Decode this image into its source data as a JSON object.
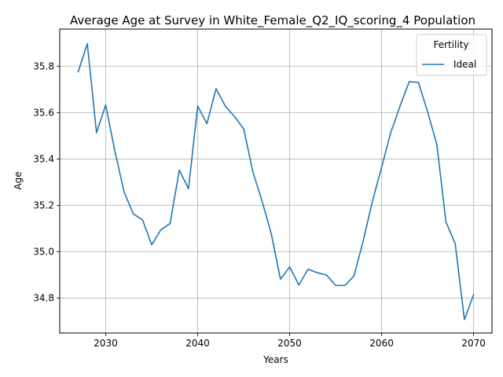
{
  "chart_data": {
    "type": "line",
    "title": "Average Age at Survey in White_Female_Q2_IQ_scoring_4 Population",
    "xlabel": "Years",
    "ylabel": "Age",
    "xlim": [
      2025,
      2072
    ],
    "ylim": [
      34.65,
      35.96
    ],
    "x_ticks": [
      2030,
      2040,
      2050,
      2060,
      2070
    ],
    "y_ticks": [
      34.8,
      35.0,
      35.2,
      35.4,
      35.6,
      35.8
    ],
    "x_tick_labels": [
      "2030",
      "2040",
      "2050",
      "2060",
      "2070"
    ],
    "y_tick_labels": [
      "34.8",
      "35.0",
      "35.2",
      "35.4",
      "35.6",
      "35.8"
    ],
    "grid": true,
    "legend": {
      "title": "Fertility",
      "placement": "top-right"
    },
    "series": [
      {
        "name": "Ideal",
        "color": "#1f77b4",
        "x": [
          2027,
          2028,
          2029,
          2030,
          2031,
          2032,
          2033,
          2034,
          2035,
          2036,
          2037,
          2038,
          2039,
          2040,
          2041,
          2042,
          2043,
          2044,
          2045,
          2046,
          2047,
          2048,
          2049,
          2050,
          2051,
          2052,
          2053,
          2054,
          2055,
          2056,
          2057,
          2058,
          2059,
          2060,
          2061,
          2062,
          2063,
          2064,
          2065,
          2066,
          2067,
          2068,
          2069,
          2070
        ],
        "y": [
          35.775,
          35.897,
          35.513,
          35.633,
          35.433,
          35.258,
          35.163,
          35.138,
          35.03,
          35.095,
          35.122,
          35.352,
          35.272,
          35.628,
          35.552,
          35.703,
          35.628,
          35.583,
          35.53,
          35.345,
          35.218,
          35.078,
          34.882,
          34.935,
          34.857,
          34.925,
          34.91,
          34.9,
          34.855,
          34.855,
          34.896,
          35.048,
          35.218,
          35.365,
          35.515,
          35.628,
          35.733,
          35.73,
          35.603,
          35.463,
          35.128,
          35.035,
          34.708,
          34.815
        ]
      }
    ]
  }
}
